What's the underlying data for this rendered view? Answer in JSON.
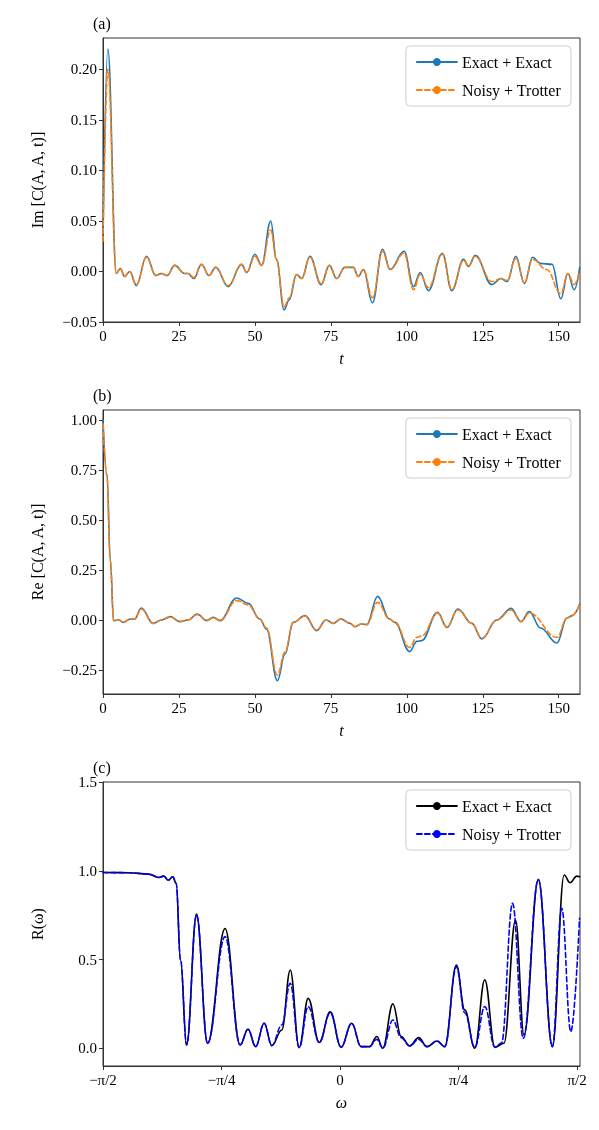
{
  "chart_data": [
    {
      "type": "line",
      "title": "(a)",
      "xlabel": "t",
      "ylabel": "Im [C(A, A, t)]",
      "xlim": [
        0,
        157
      ],
      "ylim": [
        -0.05,
        0.231
      ],
      "xticks": [
        0,
        25,
        50,
        75,
        100,
        125,
        150
      ],
      "yticks": [
        {
          "value": -0.05,
          "label": "−0.05"
        },
        {
          "value": 0,
          "label": "0.00"
        },
        {
          "value": 0.05,
          "label": "0.05"
        },
        {
          "value": 0.1,
          "label": "0.10"
        },
        {
          "value": 0.15,
          "label": "0.15"
        },
        {
          "value": 0.2,
          "label": "0.20"
        }
      ],
      "legend": "top right",
      "marker": "none",
      "series": [
        {
          "name": "Exact + Exact",
          "color": "#1f77b4",
          "line_style": "solid",
          "x": [
            0,
            1.6,
            4.4,
            5.7,
            7.1,
            8.8,
            11,
            14.3,
            17.4,
            19.2,
            21.1,
            23.6,
            26.9,
            28,
            29.9,
            32.4,
            34.9,
            37.1,
            41.2,
            45.6,
            47.3,
            50,
            52.2,
            55.2,
            57.1,
            59.6,
            61.3,
            63.7,
            65.4,
            68.1,
            71.8,
            74.5,
            76.9,
            79.6,
            82.4,
            84,
            85.7,
            88.7,
            92,
            94.5,
            99.1,
            102.2,
            104.4,
            107.1,
            111.7,
            114.8,
            118.7,
            120.3,
            122.5,
            128,
            131,
            133,
            135.9,
            138.7,
            141.4,
            143.9,
            147.8,
            150.7,
            153,
            155.1,
            156.9
          ],
          "values": [
            0.035,
            0.22,
            -0.002,
            0.003,
            -0.005,
            0,
            -0.014,
            0.015,
            -0.004,
            -0.002,
            -0.004,
            0.006,
            -0.002,
            -0.002,
            -0.007,
            0.007,
            -0.004,
            0.004,
            -0.015,
            0.007,
            -0.001,
            0.017,
            0.006,
            0.05,
            0.012,
            -0.038,
            -0.028,
            -0.003,
            -0.007,
            0.015,
            -0.013,
            0.006,
            -0.007,
            0.004,
            0.004,
            -0.005,
            0.002,
            -0.031,
            0.022,
            0.002,
            0.02,
            -0.015,
            -0.001,
            -0.019,
            0.018,
            -0.019,
            0.012,
            0.005,
            0.016,
            -0.013,
            -0.007,
            -0.01,
            0.015,
            -0.012,
            0.014,
            0.008,
            0.007,
            -0.027,
            -0.002,
            -0.018,
            0.004
          ]
        },
        {
          "name": "Noisy + Trotter",
          "color": "#ff7f0e",
          "line_style": "dashed",
          "x": [
            0,
            1.6,
            4.4,
            5.7,
            7.1,
            8.8,
            11,
            14.3,
            17.4,
            19.2,
            21.1,
            23.6,
            26.9,
            28,
            29.9,
            32.4,
            34.9,
            37.1,
            41.2,
            45.6,
            47.3,
            50,
            52.2,
            55.2,
            57.1,
            59.6,
            61.3,
            63.7,
            65.4,
            68.1,
            71.8,
            74.5,
            76.9,
            79.6,
            82.4,
            84,
            85.7,
            88.7,
            92,
            94.5,
            99.1,
            102.2,
            104.4,
            107.1,
            111.7,
            114.8,
            118.7,
            120.3,
            122.5,
            128,
            131,
            133,
            135.9,
            138.7,
            141.4,
            146,
            150.7,
            153,
            155.1,
            156.9
          ],
          "values": [
            0.03,
            0.2,
            -0.002,
            0.003,
            -0.005,
            0,
            -0.013,
            0.014,
            -0.004,
            -0.002,
            -0.004,
            0.006,
            -0.002,
            -0.002,
            -0.006,
            0.007,
            -0.004,
            0.004,
            -0.014,
            0.007,
            -0.001,
            0.015,
            0.006,
            0.041,
            0.012,
            -0.035,
            -0.026,
            -0.003,
            -0.007,
            0.014,
            -0.012,
            0.006,
            -0.007,
            0.004,
            0.004,
            -0.005,
            0.002,
            -0.026,
            0.02,
            0.002,
            0.018,
            -0.018,
            -0.003,
            -0.016,
            0.017,
            -0.018,
            0.011,
            0.005,
            0.015,
            -0.01,
            -0.007,
            -0.009,
            0.013,
            -0.011,
            0.012,
            0.002,
            -0.022,
            -0.002,
            -0.013,
            0.0
          ]
        }
      ]
    },
    {
      "type": "line",
      "title": "(b)",
      "xlabel": "t",
      "ylabel": "Re [C(A, A, t)]",
      "xlim": [
        0,
        157
      ],
      "ylim": [
        -0.37,
        1.05
      ],
      "xticks": [
        0,
        25,
        50,
        75,
        100,
        125,
        150
      ],
      "yticks": [
        {
          "value": -0.25,
          "label": "−0.25"
        },
        {
          "value": 0,
          "label": "0.00"
        },
        {
          "value": 0.25,
          "label": "0.25"
        },
        {
          "value": 0.5,
          "label": "0.50"
        },
        {
          "value": 0.75,
          "label": "0.75"
        },
        {
          "value": 1,
          "label": "1.00"
        }
      ],
      "legend": "top right",
      "marker": "none",
      "series": [
        {
          "name": "Exact + Exact",
          "color": "#1f77b4",
          "line_style": "solid",
          "x": [
            0,
            1.3,
            2.4,
            3.5,
            5.3,
            6.6,
            9,
            10.4,
            12.6,
            16.5,
            19.2,
            22.2,
            25.3,
            28,
            31,
            34.1,
            36.3,
            38.5,
            44,
            47.8,
            51.6,
            53.8,
            57.4,
            59.9,
            62.6,
            66.5,
            70.3,
            73.4,
            75.8,
            78.3,
            81.3,
            82.9,
            85.1,
            86.8,
            90.4,
            94.3,
            96.1,
            100.9,
            103.3,
            104.9,
            110.1,
            113.2,
            116.8,
            121.4,
            124.7,
            129.6,
            134.3,
            137.6,
            140.3,
            144,
            149.4,
            152.7,
            154.4,
            156.9
          ],
          "values": [
            1.0,
            0.73,
            0.3,
            -0.003,
            0,
            -0.012,
            0.005,
            0.005,
            0.06,
            -0.017,
            0,
            0.017,
            -0.008,
            0,
            0.03,
            -0.003,
            0.013,
            -0.003,
            0.11,
            0.083,
            0.005,
            -0.045,
            -0.303,
            -0.17,
            -0.012,
            0.022,
            -0.053,
            0,
            -0.017,
            0.005,
            -0.017,
            -0.033,
            -0.02,
            -0.023,
            0.118,
            0.005,
            -0.012,
            -0.158,
            -0.107,
            -0.103,
            0.038,
            -0.037,
            0.055,
            -0.017,
            -0.095,
            0,
            0.058,
            -0.008,
            0.042,
            -0.04,
            -0.115,
            0.01,
            0.022,
            0.08
          ]
        },
        {
          "name": "Noisy + Trotter",
          "color": "#ff7f0e",
          "line_style": "dashed",
          "x": [
            0,
            1.3,
            2.4,
            3.5,
            5.3,
            6.6,
            9,
            10.4,
            12.6,
            16.5,
            19.2,
            22.2,
            25.3,
            28,
            31,
            34.1,
            36.3,
            38.5,
            44,
            47.8,
            51.6,
            53.8,
            57.4,
            59.9,
            62.6,
            66.5,
            70.3,
            73.4,
            75.8,
            78.3,
            81.3,
            82.9,
            85.1,
            86.8,
            90.4,
            94.3,
            96.1,
            100.9,
            103.3,
            104.9,
            110.1,
            113.2,
            116.8,
            121.4,
            124.7,
            129.6,
            134.3,
            137.6,
            140.3,
            149.4,
            152.7,
            154.4,
            156.9
          ],
          "values": [
            0.98,
            0.72,
            0.3,
            -0.003,
            0,
            -0.012,
            0.005,
            0.005,
            0.055,
            -0.017,
            0,
            0.015,
            -0.008,
            0,
            0.027,
            -0.003,
            0.012,
            -0.003,
            0.097,
            0.075,
            0.005,
            -0.04,
            -0.275,
            -0.16,
            -0.012,
            0.02,
            -0.05,
            0,
            -0.017,
            0.005,
            -0.017,
            -0.033,
            -0.02,
            -0.023,
            0.088,
            0.005,
            -0.012,
            -0.137,
            -0.087,
            -0.08,
            0.035,
            -0.035,
            0.05,
            -0.017,
            -0.09,
            0,
            0.05,
            -0.008,
            0.035,
            -0.087,
            0.01,
            0.022,
            0.075
          ]
        }
      ]
    },
    {
      "type": "line",
      "title": "(c)",
      "xlabel": "ω",
      "ylabel": "R(ω)",
      "xlim": [
        -1.5708,
        1.59
      ],
      "ylim": [
        -0.1,
        1.5
      ],
      "xticks": [
        {
          "value": -1.5708,
          "label": "−π/2"
        },
        {
          "value": -0.7854,
          "label": "−π/4"
        },
        {
          "value": 0,
          "label": "0"
        },
        {
          "value": 0.7854,
          "label": "π/4"
        },
        {
          "value": 1.5708,
          "label": "π/2"
        }
      ],
      "yticks": [
        {
          "value": 0,
          "label": "0.0"
        },
        {
          "value": 0.5,
          "label": "0.5"
        },
        {
          "value": 1,
          "label": "1.0"
        },
        {
          "value": 1.5,
          "label": "1.5"
        }
      ],
      "legend": "top right",
      "marker": "none",
      "series": [
        {
          "name": "Exact + Exact",
          "color": "#000000",
          "line_style": "solid",
          "x": [
            -1.57,
            -1.401,
            -1.268,
            -1.201,
            -1.168,
            -1.139,
            -1.108,
            -1.086,
            -1.057,
            -1.017,
            -0.951,
            -0.878,
            -0.762,
            -0.662,
            -0.61,
            -0.559,
            -0.503,
            -0.452,
            -0.386,
            -0.33,
            -0.271,
            -0.211,
            -0.138,
            -0.065,
            0.007,
            0.077,
            0.139,
            0.195,
            0.244,
            0.283,
            0.35,
            0.405,
            0.461,
            0.521,
            0.576,
            0.642,
            0.694,
            0.771,
            0.826,
            0.893,
            0.959,
            1.026,
            1.086,
            1.163,
            1.219,
            1.314,
            1.407,
            1.485,
            1.524,
            1.569,
            1.587
          ],
          "values": [
            0.99,
            0.989,
            0.981,
            0.962,
            0.97,
            0.947,
            0.966,
            0.929,
            0.497,
            0.019,
            0.756,
            0.028,
            0.675,
            0.019,
            0.107,
            0.009,
            0.141,
            0.015,
            0.103,
            0.441,
            0.004,
            0.281,
            0.032,
            0.205,
            0.006,
            0.141,
            0.009,
            0.009,
            0.066,
            0.0,
            0.25,
            0.066,
            0.013,
            0.06,
            0.009,
            0.041,
            0.009,
            0.469,
            0.216,
            0.0,
            0.385,
            0.006,
            0.028,
            0.722,
            0.075,
            0.951,
            0.009,
            0.976,
            0.932,
            0.97,
            0.966
          ]
        },
        {
          "name": "Noisy + Trotter",
          "color": "#0000ff",
          "line_style": "dashed",
          "x": [
            -1.57,
            -1.401,
            -1.268,
            -1.201,
            -1.168,
            -1.139,
            -1.108,
            -1.086,
            -1.057,
            -1.017,
            -0.951,
            -0.878,
            -0.762,
            -0.662,
            -0.61,
            -0.559,
            -0.503,
            -0.452,
            -0.386,
            -0.33,
            -0.271,
            -0.211,
            -0.138,
            -0.065,
            0.007,
            0.077,
            0.139,
            0.195,
            0.244,
            0.283,
            0.35,
            0.405,
            0.461,
            0.521,
            0.576,
            0.642,
            0.694,
            0.771,
            0.826,
            0.893,
            0.959,
            1.026,
            1.07,
            1.143,
            1.214,
            1.314,
            1.407,
            1.469,
            1.529,
            1.587
          ],
          "values": [
            0.99,
            0.989,
            0.981,
            0.962,
            0.97,
            0.947,
            0.966,
            0.929,
            0.497,
            0.019,
            0.75,
            0.028,
            0.629,
            0.019,
            0.107,
            0.009,
            0.141,
            0.015,
            0.131,
            0.366,
            0.004,
            0.235,
            0.032,
            0.2,
            0.006,
            0.141,
            0.009,
            0.009,
            0.05,
            0.0,
            0.159,
            0.06,
            0.013,
            0.05,
            0.009,
            0.041,
            0.009,
            0.46,
            0.2,
            0.005,
            0.235,
            0.005,
            0.03,
            0.816,
            0.056,
            0.951,
            0.009,
            0.788,
            0.094,
            0.732
          ]
        }
      ]
    }
  ]
}
